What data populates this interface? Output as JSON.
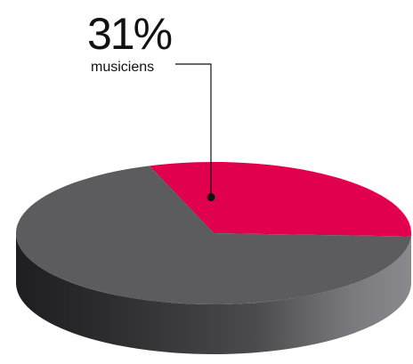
{
  "colors": {
    "highlight": "#e0004d",
    "rest_top": "#5c5c5e",
    "side_dark": "#2c2c2e",
    "side_light": "#86868a",
    "leader": "#111111"
  },
  "chart_data": {
    "type": "pie",
    "style": "3d",
    "slices": [
      {
        "label": "musiciens",
        "value": 31,
        "value_label": "31%",
        "highlighted": true
      },
      {
        "label": "",
        "value": 69,
        "value_label": "",
        "highlighted": false
      }
    ],
    "annotation": {
      "value_text": "31%",
      "label_text": "musiciens",
      "points_to_slice": 0
    }
  }
}
